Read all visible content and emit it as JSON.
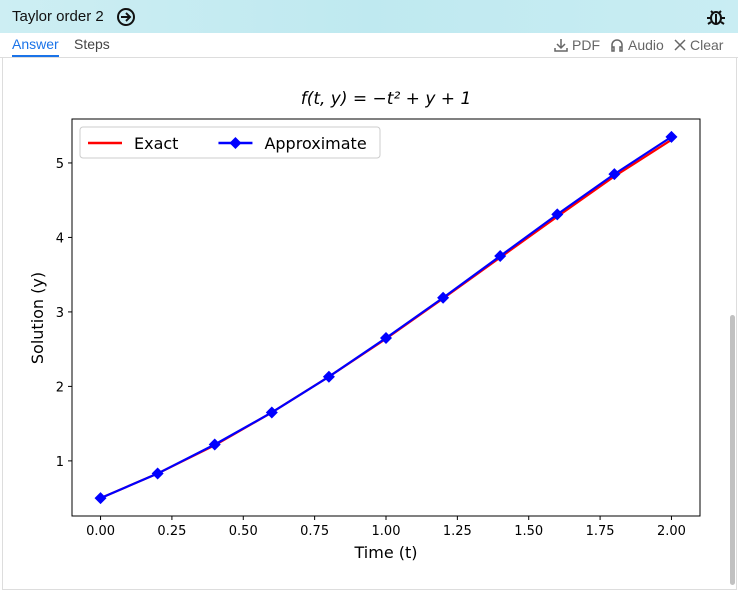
{
  "header": {
    "title": "Taylor order 2"
  },
  "tabs": [
    "Answer",
    "Steps"
  ],
  "actions": [
    "PDF",
    "Audio",
    "Clear"
  ],
  "chart_data": {
    "type": "line",
    "title": "f(t, y) = −t² + y + 1",
    "x_label": "Time (t)",
    "y_label": "Solution (y)",
    "x": [
      0,
      0.2,
      0.4,
      0.6,
      0.8,
      1.0,
      1.2,
      1.4,
      1.6,
      1.8,
      2.0
    ],
    "series": [
      {
        "name": "Exact",
        "color": "#ff0000",
        "values": [
          0.5,
          0.83,
          1.21,
          1.65,
          2.13,
          2.64,
          3.18,
          3.73,
          4.28,
          4.82,
          5.31
        ]
      },
      {
        "name": "Approximate",
        "color": "#0000ff",
        "marker": "diamond",
        "values": [
          0.5,
          0.83,
          1.22,
          1.65,
          2.13,
          2.65,
          3.19,
          3.75,
          4.31,
          4.85,
          5.35
        ]
      }
    ],
    "xlim": [
      -0.1,
      2.1
    ],
    "ylim": [
      0.26,
      5.59
    ],
    "xticks": [
      {
        "value": 0,
        "label": "0.00"
      },
      {
        "value": 0.25,
        "label": "0.25"
      },
      {
        "value": 0.5,
        "label": "0.50"
      },
      {
        "value": 0.75,
        "label": "0.75"
      },
      {
        "value": 1,
        "label": "1.00"
      },
      {
        "value": 1.25,
        "label": "1.25"
      },
      {
        "value": 1.5,
        "label": "1.50"
      },
      {
        "value": 1.75,
        "label": "1.75"
      },
      {
        "value": 2,
        "label": "2.00"
      }
    ],
    "yticks": [
      1,
      2,
      3,
      4,
      5
    ],
    "legend": "upper-left",
    "grid": false
  }
}
